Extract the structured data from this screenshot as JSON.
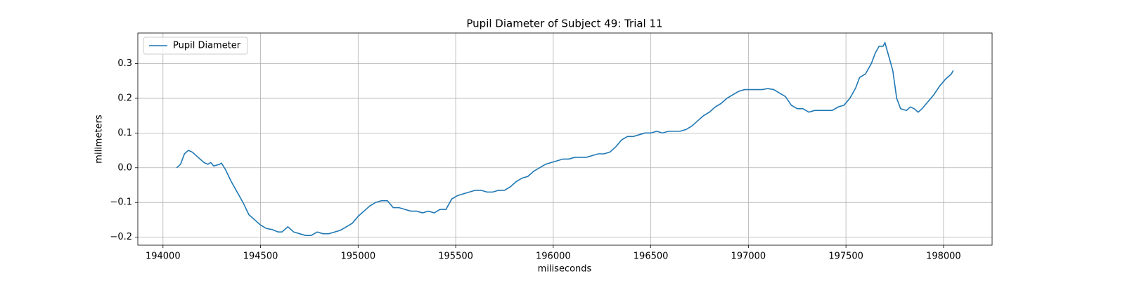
{
  "chart_data": {
    "type": "line",
    "title": "Pupil Diameter of Subject 49: Trial 11",
    "x_label": "miliseconds",
    "y_label": "milimeters",
    "x": [
      194070,
      194090,
      194110,
      194130,
      194150,
      194180,
      194210,
      194230,
      194245,
      194260,
      194290,
      194300,
      194320,
      194350,
      194380,
      194410,
      194440,
      194470,
      194500,
      194530,
      194560,
      194590,
      194610,
      194640,
      194670,
      194700,
      194730,
      194760,
      194790,
      194820,
      194850,
      194880,
      194910,
      194940,
      194970,
      195000,
      195030,
      195060,
      195090,
      195120,
      195150,
      195180,
      195210,
      195240,
      195270,
      195300,
      195330,
      195360,
      195390,
      195420,
      195450,
      195480,
      195510,
      195540,
      195570,
      195600,
      195630,
      195660,
      195690,
      195720,
      195750,
      195780,
      195810,
      195840,
      195870,
      195900,
      195930,
      195960,
      195990,
      196020,
      196050,
      196080,
      196110,
      196140,
      196170,
      196200,
      196230,
      196260,
      196290,
      196320,
      196350,
      196380,
      196410,
      196440,
      196470,
      196500,
      196530,
      196560,
      196590,
      196620,
      196650,
      196680,
      196710,
      196740,
      196770,
      196800,
      196830,
      196860,
      196890,
      196920,
      196950,
      196980,
      197010,
      197040,
      197070,
      197100,
      197130,
      197160,
      197190,
      197220,
      197250,
      197280,
      197310,
      197340,
      197370,
      197400,
      197430,
      197460,
      197490,
      197520,
      197550,
      197570,
      197600,
      197630,
      197650,
      197670,
      197690,
      197700,
      197720,
      197740,
      197760,
      197780,
      197810,
      197830,
      197850,
      197870,
      197890,
      197920,
      197950,
      197980,
      198010,
      198040,
      198050
    ],
    "series": [
      {
        "name": "Pupil Diameter",
        "color": "#1f77b4",
        "values": [
          0.0,
          0.01,
          0.04,
          0.05,
          0.045,
          0.03,
          0.015,
          0.01,
          0.015,
          0.005,
          0.01,
          0.013,
          -0.005,
          -0.04,
          -0.07,
          -0.1,
          -0.135,
          -0.15,
          -0.165,
          -0.175,
          -0.178,
          -0.185,
          -0.185,
          -0.17,
          -0.185,
          -0.19,
          -0.195,
          -0.195,
          -0.185,
          -0.19,
          -0.19,
          -0.185,
          -0.18,
          -0.17,
          -0.16,
          -0.14,
          -0.125,
          -0.11,
          -0.1,
          -0.095,
          -0.095,
          -0.115,
          -0.115,
          -0.12,
          -0.125,
          -0.125,
          -0.13,
          -0.125,
          -0.13,
          -0.12,
          -0.12,
          -0.09,
          -0.08,
          -0.075,
          -0.07,
          -0.065,
          -0.065,
          -0.07,
          -0.07,
          -0.065,
          -0.065,
          -0.055,
          -0.04,
          -0.03,
          -0.025,
          -0.01,
          0.0,
          0.01,
          0.015,
          0.02,
          0.025,
          0.025,
          0.03,
          0.03,
          0.03,
          0.035,
          0.04,
          0.04,
          0.045,
          0.06,
          0.08,
          0.09,
          0.09,
          0.095,
          0.1,
          0.1,
          0.105,
          0.1,
          0.105,
          0.105,
          0.105,
          0.11,
          0.12,
          0.135,
          0.15,
          0.16,
          0.175,
          0.185,
          0.2,
          0.21,
          0.22,
          0.225,
          0.225,
          0.225,
          0.225,
          0.228,
          0.225,
          0.215,
          0.205,
          0.18,
          0.17,
          0.17,
          0.16,
          0.165,
          0.165,
          0.165,
          0.165,
          0.175,
          0.18,
          0.2,
          0.23,
          0.26,
          0.27,
          0.3,
          0.33,
          0.35,
          0.35,
          0.36,
          0.32,
          0.28,
          0.2,
          0.17,
          0.165,
          0.175,
          0.17,
          0.16,
          0.17,
          0.19,
          0.21,
          0.235,
          0.255,
          0.27,
          0.28
        ]
      }
    ],
    "xlim": [
      193871,
      198249
    ],
    "xticks": [
      194000,
      194500,
      195000,
      195500,
      196000,
      196500,
      197000,
      197500,
      198000
    ],
    "ylim": [
      -0.223,
      0.388
    ],
    "yticks": [
      {
        "value": -0.2,
        "label": "−0.2"
      },
      {
        "value": -0.1,
        "label": "−0.1"
      },
      {
        "value": 0.0,
        "label": "0.0"
      },
      0.1,
      0.2,
      0.3
    ],
    "grid": true,
    "legend": "upper left"
  }
}
